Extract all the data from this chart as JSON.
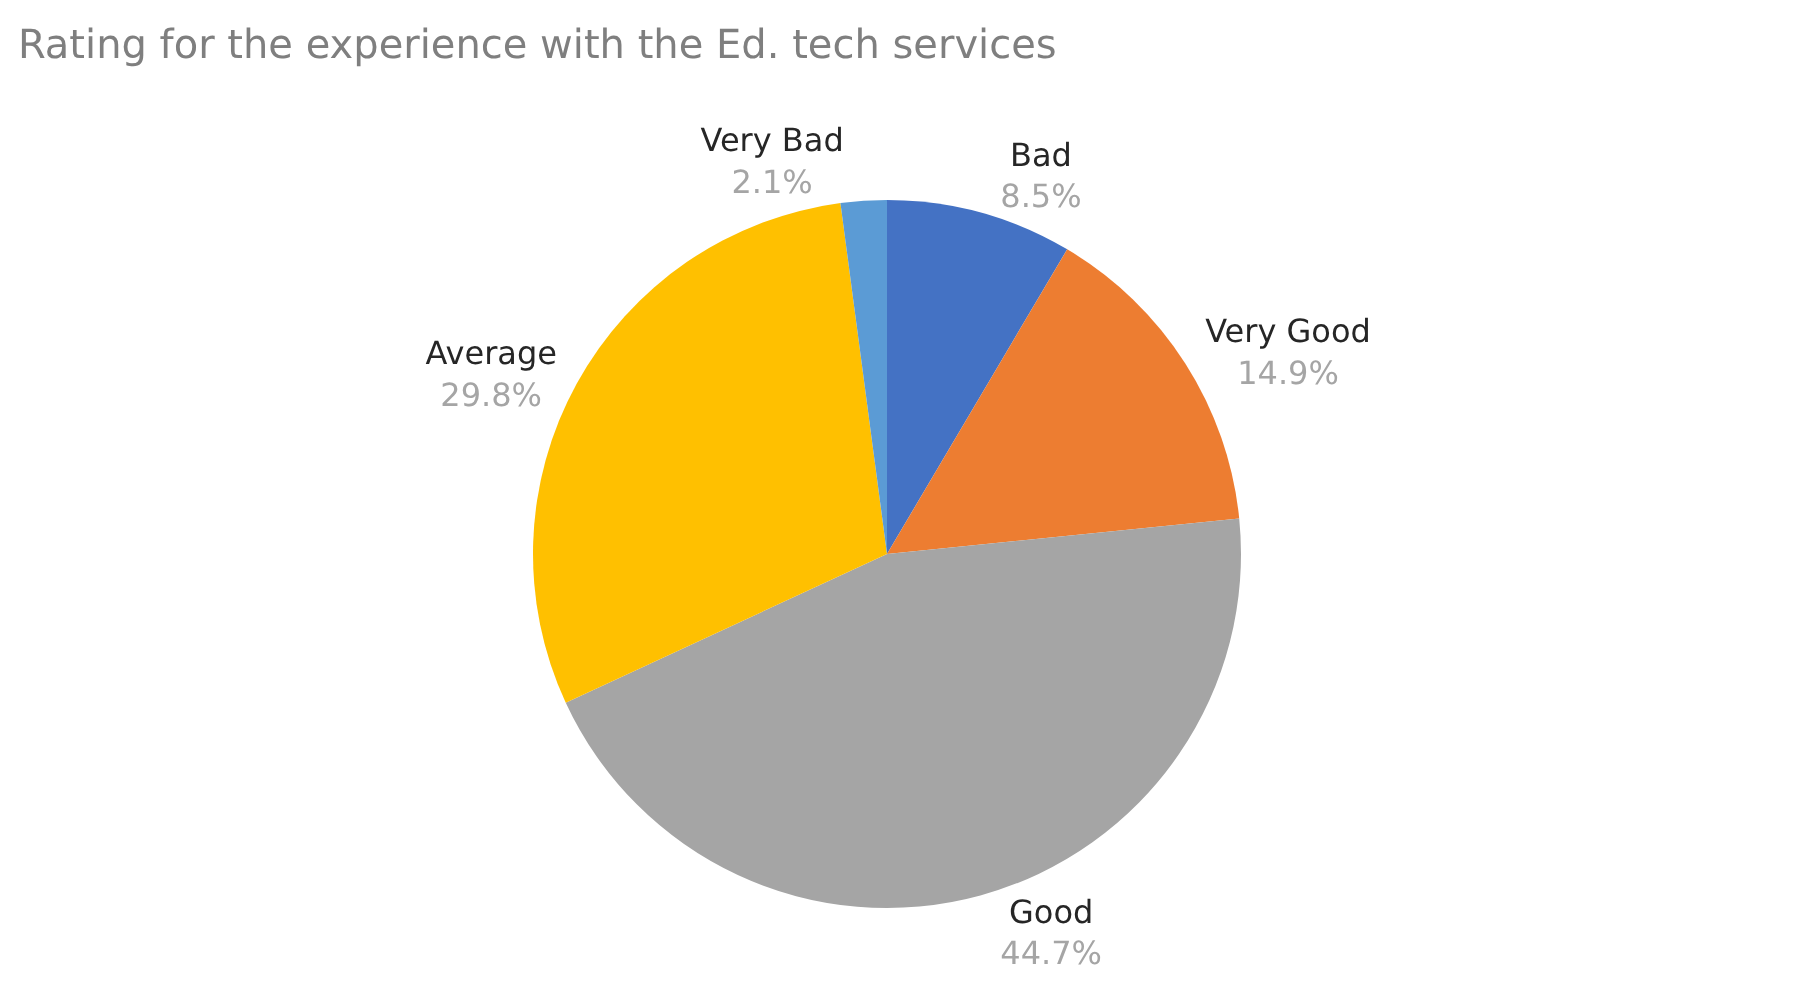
{
  "chart_data": {
    "type": "pie",
    "title": "Rating for the experience with the Ed. tech services",
    "categories": [
      "Bad",
      "Very Good",
      "Good",
      "Average",
      "Very Bad"
    ],
    "values": [
      8.5,
      14.9,
      44.7,
      29.8,
      2.1
    ],
    "value_labels": [
      "8.5%",
      "14.9%",
      "44.7%",
      "29.8%",
      "2.1%"
    ],
    "colors": [
      "#4472c4",
      "#ed7d31",
      "#a5a5a5",
      "#ffc000",
      "#5b9bd5"
    ],
    "legend": false
  }
}
